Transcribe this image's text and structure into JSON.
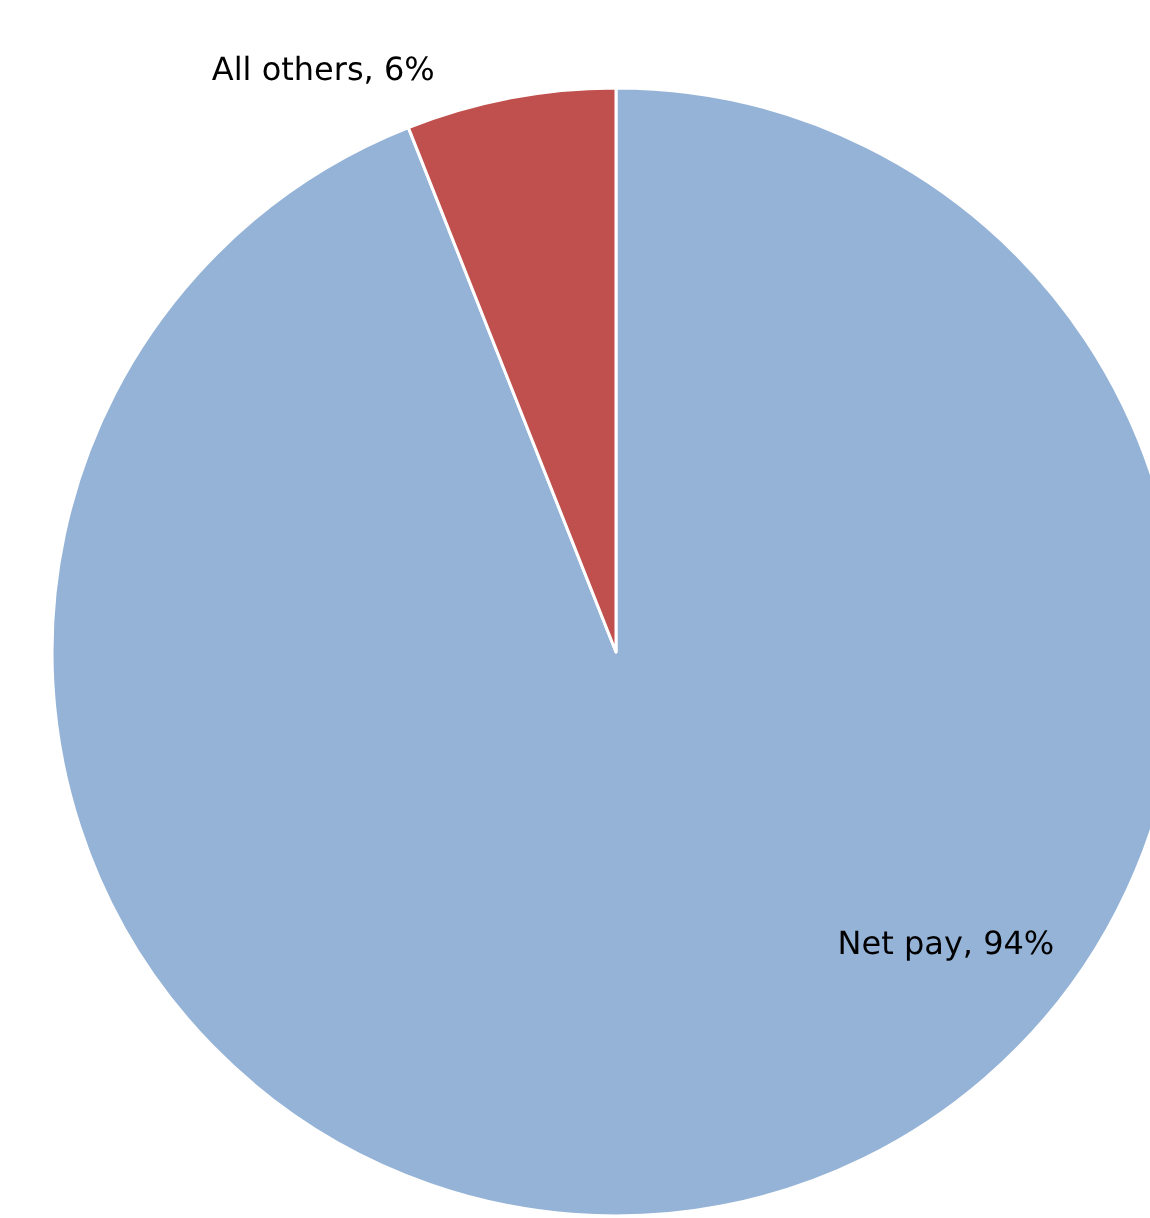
{
  "chart_data": {
    "type": "pie",
    "categories": [
      "Net pay",
      "All others"
    ],
    "values": [
      94,
      6
    ],
    "colors": [
      "#95b3d7",
      "#c0504d"
    ],
    "value_labels": [
      ", 94%",
      ", 6%"
    ],
    "legend": false
  }
}
